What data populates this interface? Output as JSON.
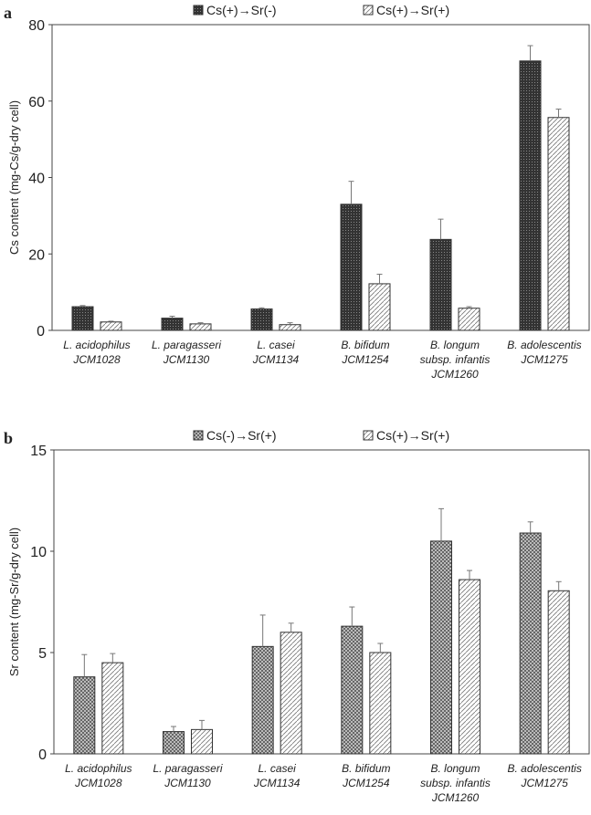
{
  "chart_data": [
    {
      "type": "bar",
      "panel_label": "a",
      "ylabel": "Cs content (mg-Cs/g-dry cell)",
      "ylim": [
        0,
        80
      ],
      "yticks": [
        0,
        20,
        40,
        60,
        80
      ],
      "categories": [
        [
          "L. acidophilus",
          "JCM1028"
        ],
        [
          "L. paragasseri",
          "JCM1130"
        ],
        [
          "L. casei",
          "JCM1134"
        ],
        [
          "B. bifidum",
          "JCM1254"
        ],
        [
          "B. longum",
          "subsp. infantis",
          "JCM1260"
        ],
        [
          "B. adolescentis",
          "JCM1275"
        ]
      ],
      "legend_position": "top",
      "series": [
        {
          "name": "Cs(+)→Sr(-)",
          "pattern": "dark",
          "values": [
            6.2,
            3.2,
            5.6,
            33.0,
            23.8,
            70.5
          ],
          "errors": [
            0.3,
            0.5,
            0.3,
            6.0,
            5.3,
            4.0
          ]
        },
        {
          "name": "Cs(+)→Sr(+)",
          "pattern": "light",
          "values": [
            2.2,
            1.7,
            1.5,
            12.2,
            5.8,
            55.7
          ],
          "errors": [
            0.2,
            0.3,
            0.5,
            2.5,
            0.4,
            2.2
          ]
        }
      ]
    },
    {
      "type": "bar",
      "panel_label": "b",
      "ylabel": "Sr content (mg-Sr/g-dry cell)",
      "ylim": [
        0,
        15
      ],
      "yticks": [
        0,
        5,
        10,
        15
      ],
      "categories": [
        [
          "L. acidophilus",
          "JCM1028"
        ],
        [
          "L. paragasseri",
          "JCM1130"
        ],
        [
          "L. casei",
          "JCM1134"
        ],
        [
          "B. bifidum",
          "JCM1254"
        ],
        [
          "B. longum",
          "subsp. infantis",
          "JCM1260"
        ],
        [
          "B. adolescentis",
          "JCM1275"
        ]
      ],
      "legend_position": "top",
      "series": [
        {
          "name": "Cs(-)→Sr(+)",
          "pattern": "check",
          "values": [
            3.8,
            1.1,
            5.3,
            6.3,
            10.5,
            10.9
          ],
          "errors": [
            1.1,
            0.25,
            1.55,
            0.95,
            1.6,
            0.55
          ]
        },
        {
          "name": "Cs(+)→Sr(+)",
          "pattern": "light",
          "values": [
            4.5,
            1.2,
            6.0,
            5.0,
            8.6,
            8.05
          ],
          "errors": [
            0.45,
            0.45,
            0.45,
            0.45,
            0.45,
            0.45
          ]
        }
      ]
    }
  ]
}
